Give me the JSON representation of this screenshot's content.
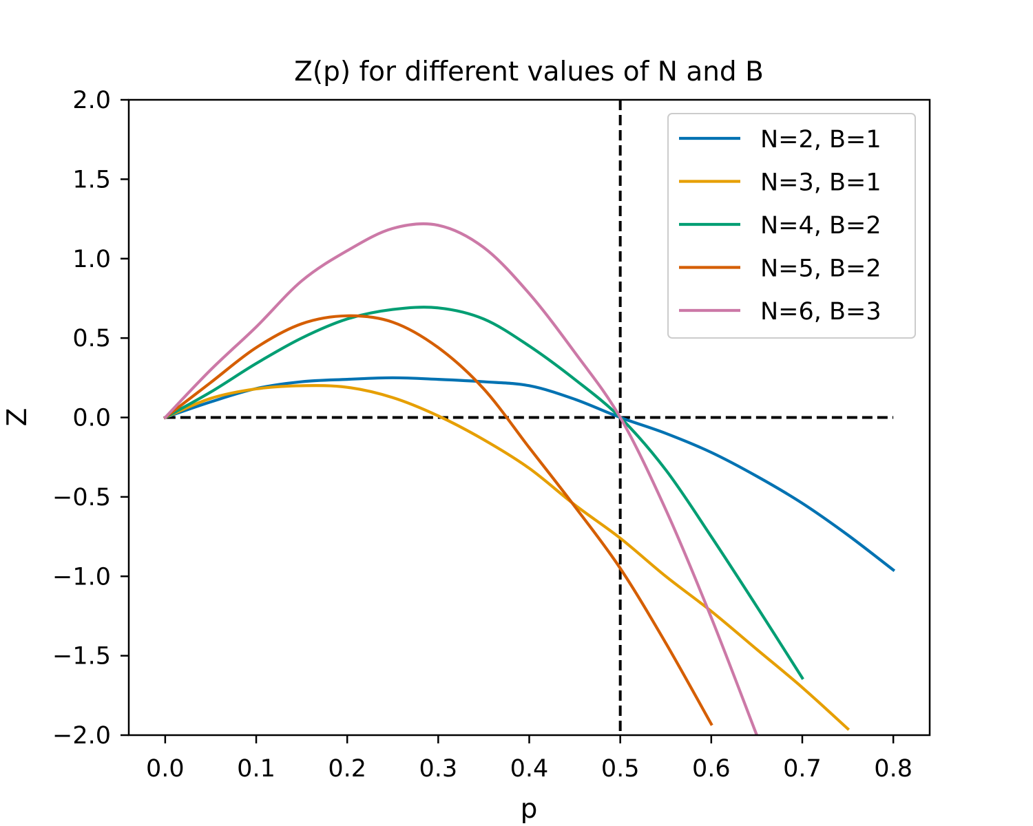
{
  "chart_data": {
    "type": "line",
    "title": "Z(p) for different values of N and B",
    "xlabel": "p",
    "ylabel": "Z",
    "xlim": [
      -0.04,
      0.84
    ],
    "ylim": [
      -2.0,
      2.0
    ],
    "xticks": [
      0.0,
      0.1,
      0.2,
      0.3,
      0.4,
      0.5,
      0.6,
      0.7,
      0.8
    ],
    "xtick_labels": [
      "0.0",
      "0.1",
      "0.2",
      "0.3",
      "0.4",
      "0.5",
      "0.6",
      "0.7",
      "0.8"
    ],
    "yticks": [
      2.0,
      1.5,
      1.0,
      0.5,
      0.0,
      -0.5,
      -1.0,
      -1.5,
      -2.0
    ],
    "ytick_labels": [
      "2.0",
      "1.5",
      "1.0",
      "0.5",
      "0.0",
      "−0.5",
      "−1.0",
      "−1.5",
      "−2.0"
    ],
    "grid": false,
    "legend_position": "top-right",
    "reference_lines": [
      {
        "orientation": "horizontal",
        "value": 0.0,
        "from": 0.0,
        "to": 0.8,
        "style": "dashed",
        "color": "#000000"
      },
      {
        "orientation": "vertical",
        "value": 0.5,
        "style": "dashed",
        "color": "#000000"
      }
    ],
    "x": [
      0.0,
      0.05,
      0.1,
      0.15,
      0.2,
      0.25,
      0.3,
      0.35,
      0.4,
      0.45,
      0.5,
      0.55,
      0.6,
      0.65,
      0.7,
      0.75,
      0.8
    ],
    "series": [
      {
        "name": "N=2, B=1",
        "color": "#0072b2",
        "values": [
          0.0,
          0.098,
          0.182,
          0.225,
          0.24,
          0.25,
          0.24,
          0.225,
          0.2,
          0.115,
          0.0,
          -0.1,
          -0.22,
          -0.37,
          -0.54,
          -0.74,
          -0.96
        ]
      },
      {
        "name": "N=3, B=1",
        "color": "#e69f00",
        "values": [
          0.0,
          0.12,
          0.18,
          0.2,
          0.19,
          0.125,
          0.01,
          -0.14,
          -0.32,
          -0.55,
          -0.76,
          -1.0,
          -1.22,
          -1.46,
          -1.7,
          -1.96,
          null
        ]
      },
      {
        "name": "N=4, B=2",
        "color": "#009e73",
        "values": [
          0.0,
          0.16,
          0.34,
          0.5,
          0.62,
          0.68,
          0.69,
          0.62,
          0.45,
          0.24,
          0.0,
          -0.33,
          -0.75,
          -1.19,
          -1.64,
          null,
          null
        ]
      },
      {
        "name": "N=5, B=2",
        "color": "#d55e00",
        "values": [
          0.0,
          0.22,
          0.44,
          0.59,
          0.64,
          0.6,
          0.44,
          0.18,
          -0.19,
          -0.56,
          -0.95,
          -1.42,
          -1.93,
          null,
          null,
          null,
          null
        ]
      },
      {
        "name": "N=6, B=3",
        "color": "#cc79a7",
        "values": [
          0.0,
          0.3,
          0.57,
          0.86,
          1.05,
          1.19,
          1.21,
          1.07,
          0.78,
          0.41,
          0.0,
          -0.58,
          -1.26,
          -2.0,
          null,
          null,
          null
        ]
      }
    ]
  }
}
